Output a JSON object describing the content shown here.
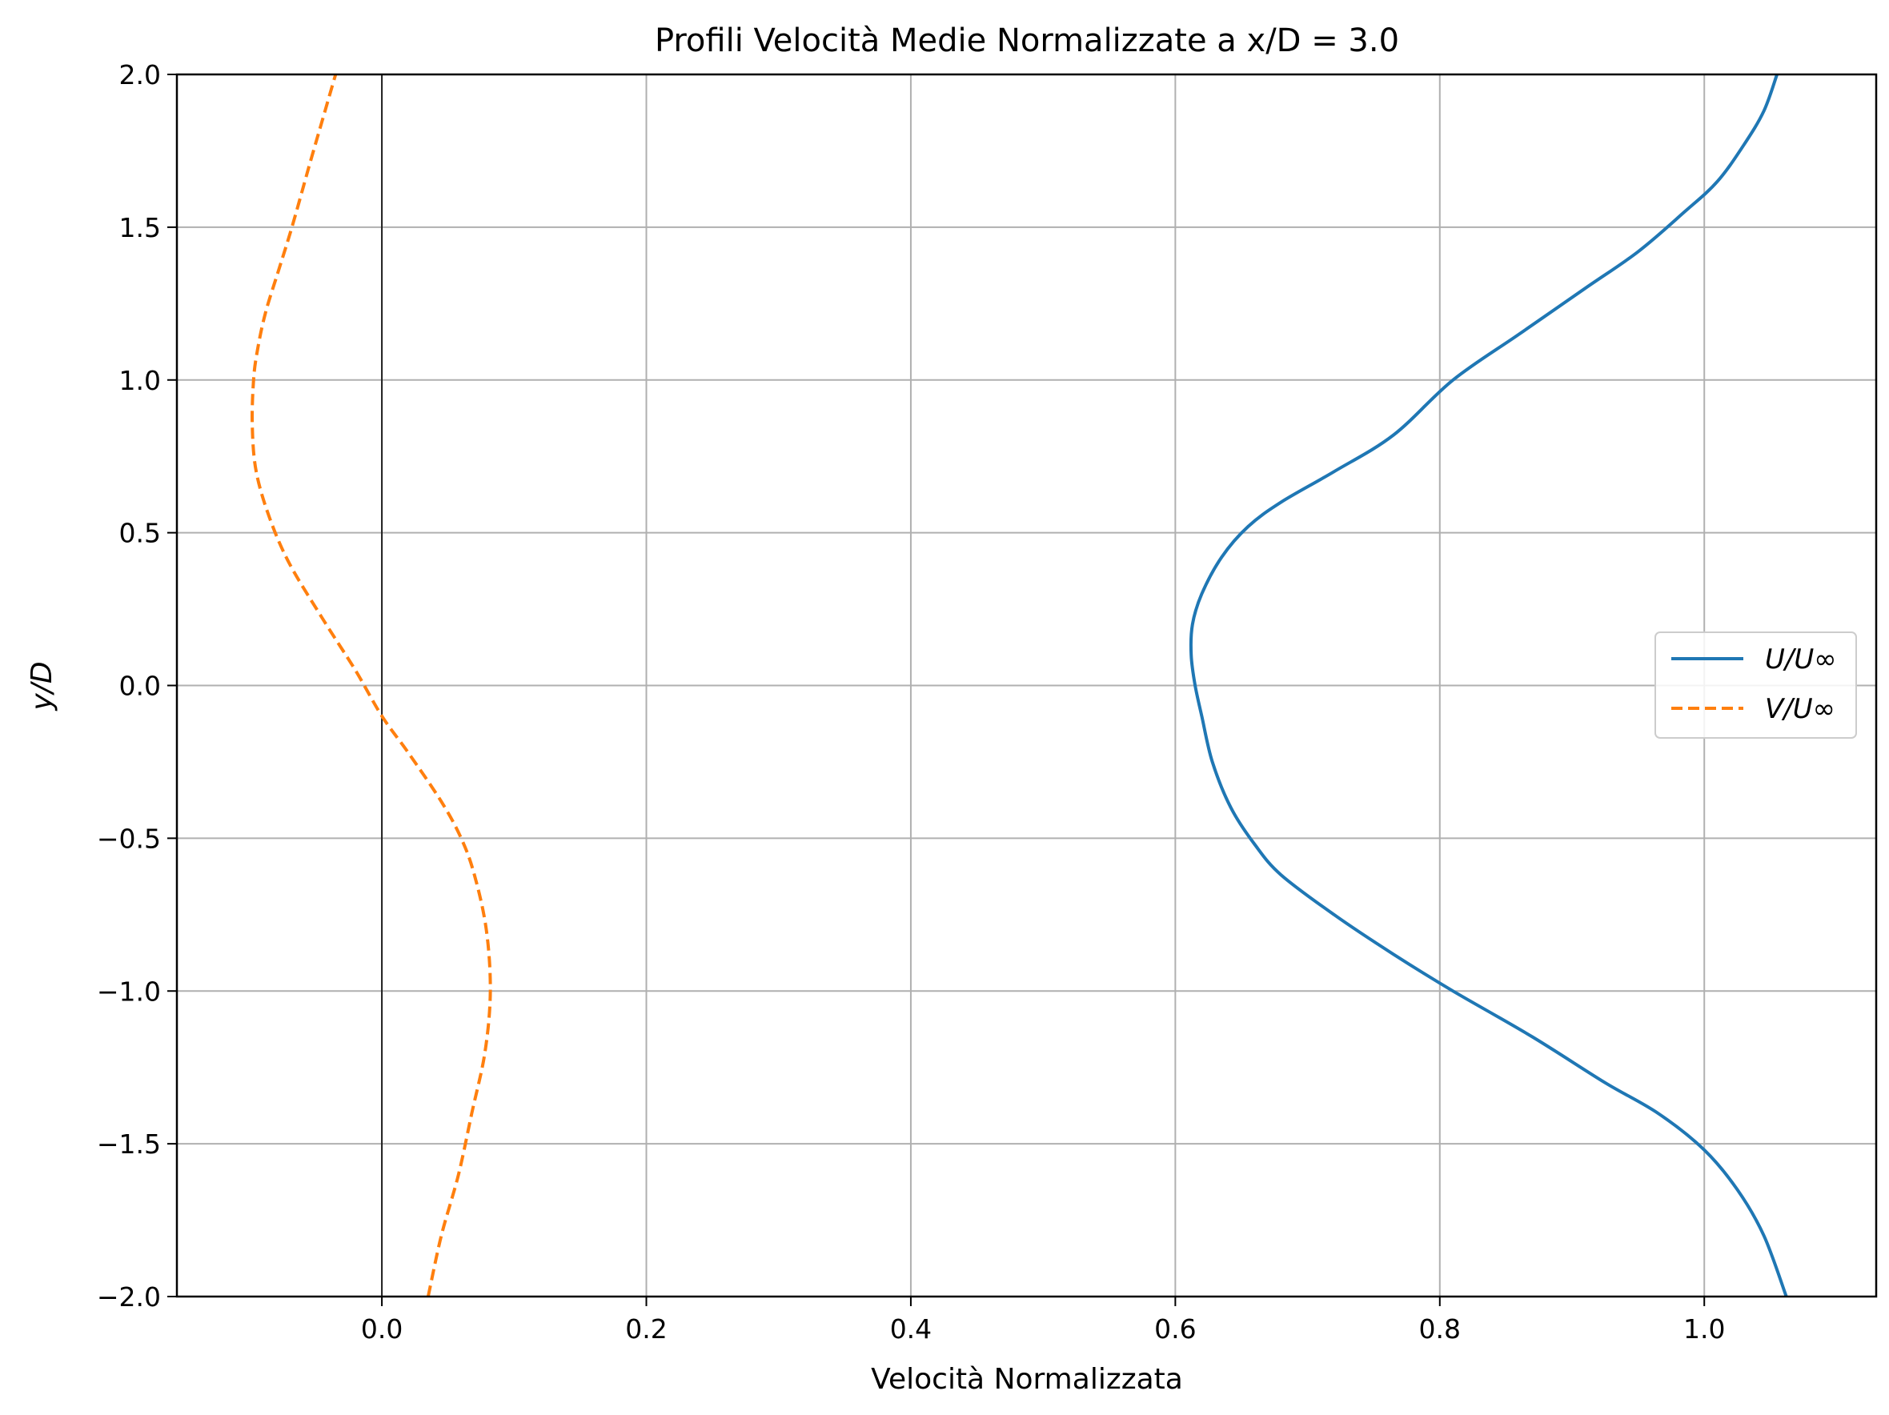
{
  "chart_data": {
    "type": "line",
    "title": "Profili Velocità Medie Normalizzate a x/D = 3.0",
    "xlabel": "Velocità Normalizzata",
    "ylabel": "y/D",
    "xlim": [
      -0.155,
      1.13
    ],
    "ylim": [
      -2.0,
      2.0
    ],
    "xticks": [
      0.0,
      0.2,
      0.4,
      0.6,
      0.8,
      1.0
    ],
    "xtick_labels": [
      "0.0",
      "0.2",
      "0.4",
      "0.6",
      "0.8",
      "1.0"
    ],
    "yticks": [
      -2.0,
      -1.5,
      -1.0,
      -0.5,
      0.0,
      0.5,
      1.0,
      1.5,
      2.0
    ],
    "ytick_labels": [
      "−2.0",
      "−1.5",
      "−1.0",
      "−0.5",
      "0.0",
      "0.5",
      "1.0",
      "1.5",
      "2.0"
    ],
    "grid": true,
    "legend_position": "center-right",
    "vertical_reference_line": 0.0,
    "series": [
      {
        "name": "U/U∞",
        "color": "#1f77b4",
        "style": "solid",
        "points": [
          [
            1.062,
            -2.0
          ],
          [
            1.045,
            -1.8
          ],
          [
            1.025,
            -1.65
          ],
          [
            1.0,
            -1.52
          ],
          [
            0.965,
            -1.4
          ],
          [
            0.925,
            -1.3
          ],
          [
            0.87,
            -1.15
          ],
          [
            0.81,
            -1.0
          ],
          [
            0.765,
            -0.88
          ],
          [
            0.72,
            -0.75
          ],
          [
            0.68,
            -0.62
          ],
          [
            0.66,
            -0.52
          ],
          [
            0.642,
            -0.4
          ],
          [
            0.628,
            -0.25
          ],
          [
            0.62,
            -0.1
          ],
          [
            0.615,
            0.0
          ],
          [
            0.612,
            0.1
          ],
          [
            0.613,
            0.2
          ],
          [
            0.62,
            0.3
          ],
          [
            0.635,
            0.42
          ],
          [
            0.655,
            0.52
          ],
          [
            0.68,
            0.6
          ],
          [
            0.72,
            0.7
          ],
          [
            0.765,
            0.82
          ],
          [
            0.81,
            1.0
          ],
          [
            0.86,
            1.15
          ],
          [
            0.91,
            1.3
          ],
          [
            0.95,
            1.42
          ],
          [
            0.985,
            1.55
          ],
          [
            1.01,
            1.65
          ],
          [
            1.03,
            1.77
          ],
          [
            1.045,
            1.88
          ],
          [
            1.055,
            2.0
          ]
        ]
      },
      {
        "name": "V/U∞",
        "color": "#ff7f0e",
        "style": "dashed",
        "points": [
          [
            0.035,
            -2.0
          ],
          [
            0.045,
            -1.8
          ],
          [
            0.058,
            -1.6
          ],
          [
            0.068,
            -1.4
          ],
          [
            0.078,
            -1.2
          ],
          [
            0.082,
            -1.0
          ],
          [
            0.079,
            -0.8
          ],
          [
            0.07,
            -0.62
          ],
          [
            0.06,
            -0.5
          ],
          [
            0.045,
            -0.38
          ],
          [
            0.02,
            -0.22
          ],
          [
            0.0,
            -0.1
          ],
          [
            -0.02,
            0.05
          ],
          [
            -0.045,
            0.22
          ],
          [
            -0.07,
            0.4
          ],
          [
            -0.085,
            0.55
          ],
          [
            -0.095,
            0.7
          ],
          [
            -0.098,
            0.85
          ],
          [
            -0.097,
            1.0
          ],
          [
            -0.094,
            1.1
          ],
          [
            -0.088,
            1.22
          ],
          [
            -0.078,
            1.36
          ],
          [
            -0.068,
            1.5
          ],
          [
            -0.055,
            1.7
          ],
          [
            -0.045,
            1.85
          ],
          [
            -0.035,
            2.0
          ]
        ]
      }
    ]
  }
}
